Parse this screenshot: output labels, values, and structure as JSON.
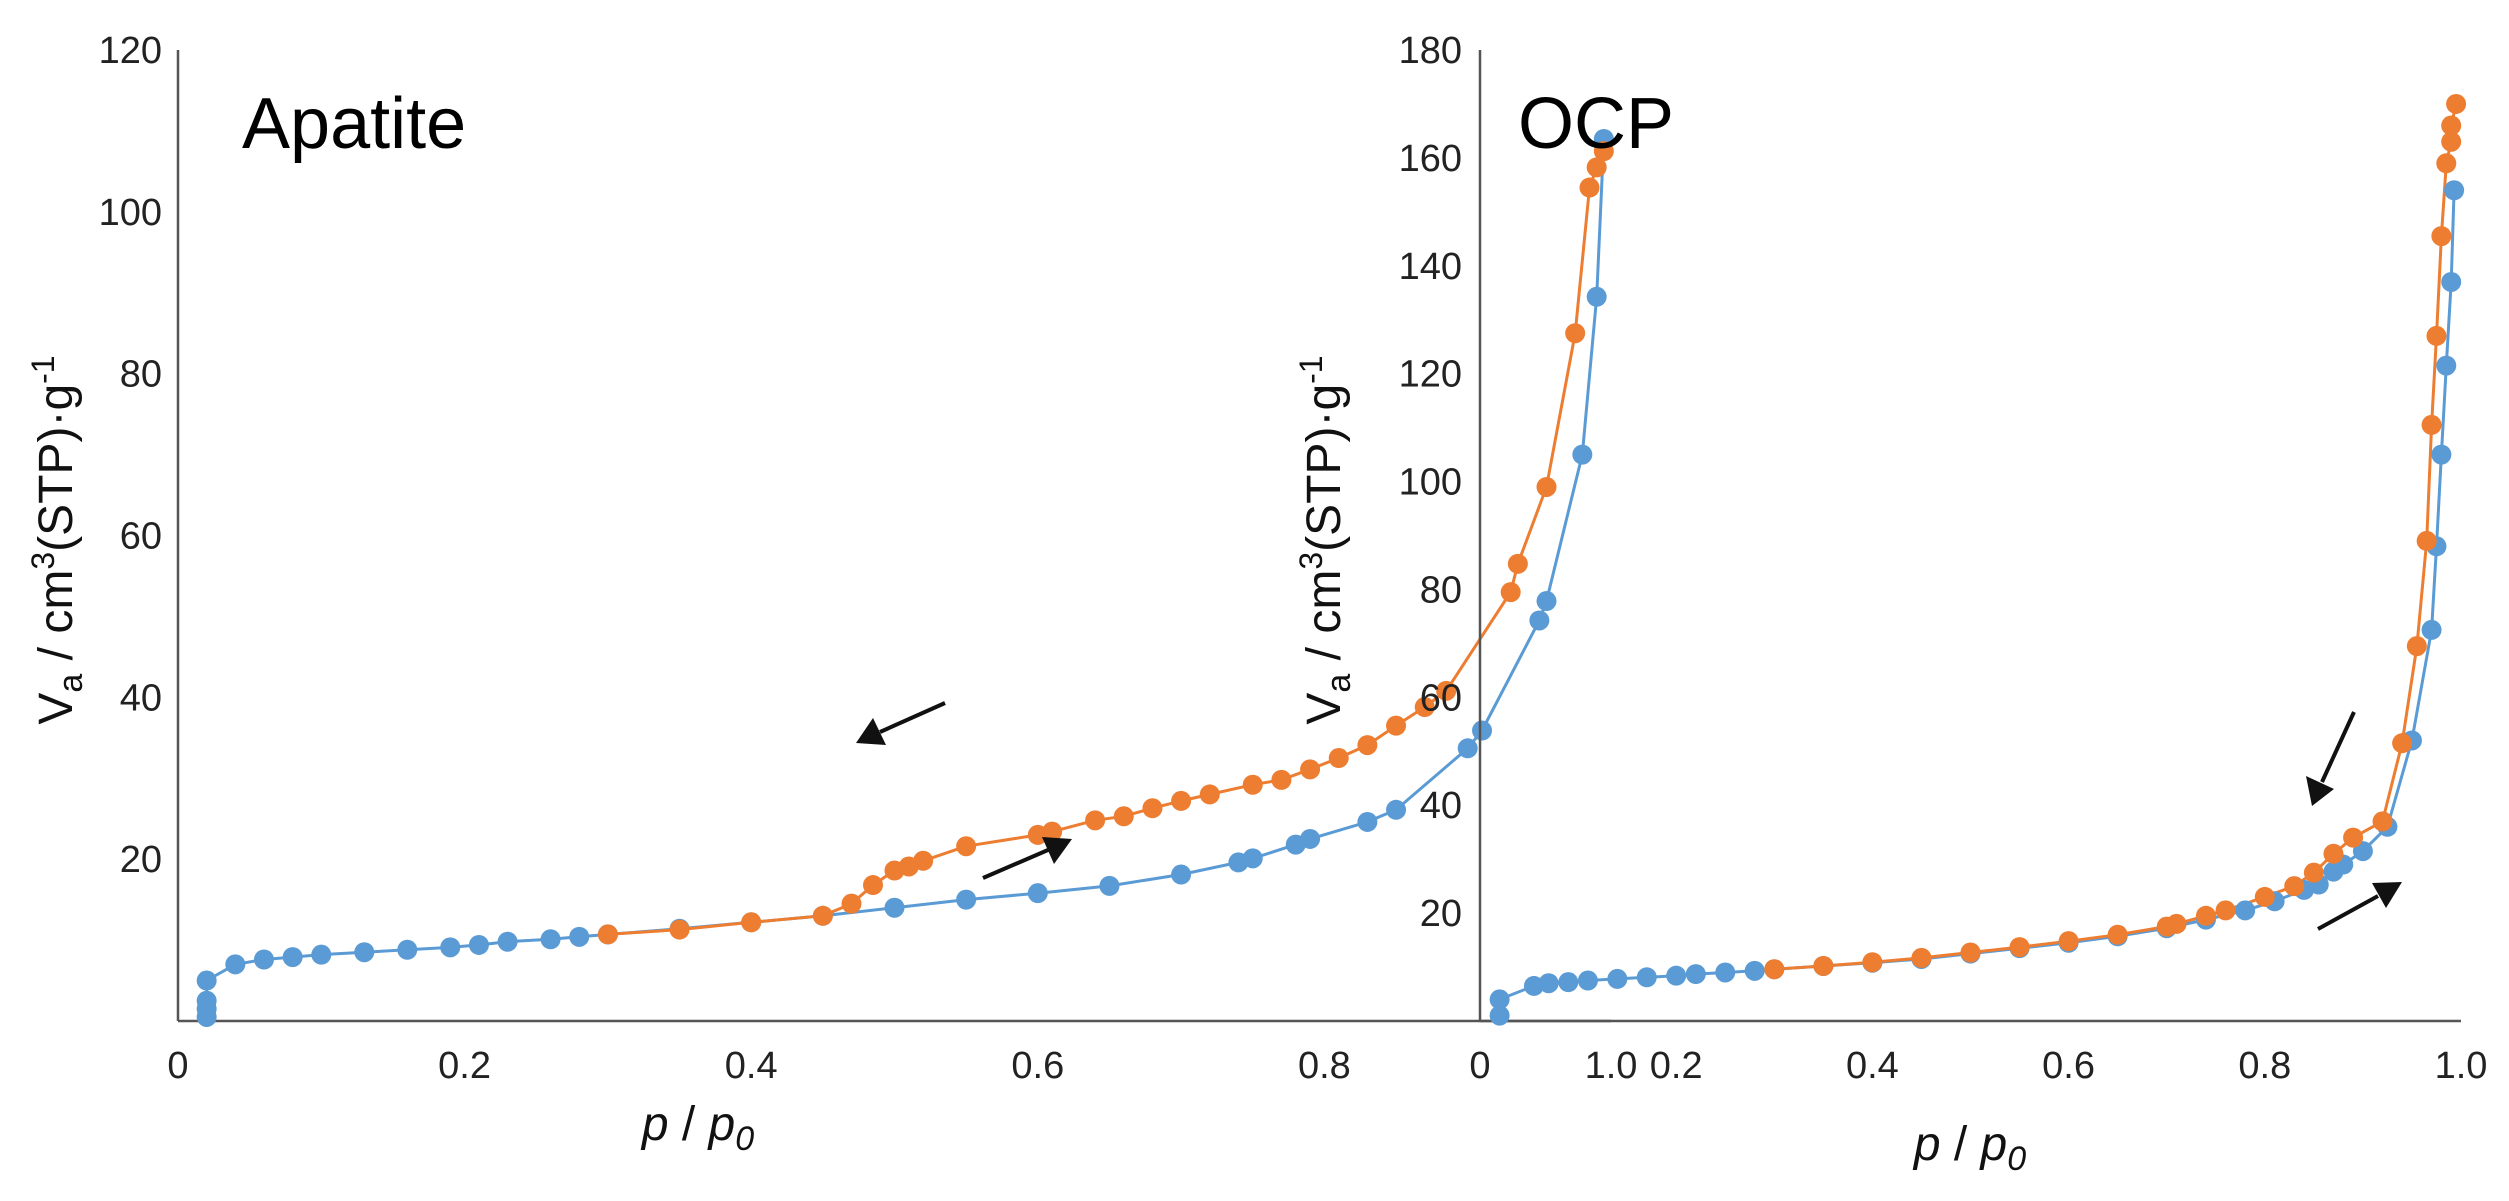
{
  "colors": {
    "adsorption": "#5b9bd5",
    "desorption": "#ed7d31",
    "axis": "#555555",
    "arrow": "#111111"
  },
  "chart_data": [
    {
      "type": "line",
      "title": "Apatite",
      "xlabel": "p / p0",
      "ylabel": "Va / cm3(STP)·g-1",
      "xlim": [
        0,
        1.0
      ],
      "ylim": [
        0,
        120
      ],
      "xticks": [
        0,
        0.2,
        0.4,
        0.6,
        0.8,
        1.0
      ],
      "xtick_labels": [
        "0",
        "0.2",
        "0.4",
        "0.6",
        "0.8",
        "1.0"
      ],
      "yticks": [
        20,
        40,
        60,
        80,
        100,
        120
      ],
      "ytick_labels": [
        "20",
        "40",
        "60",
        "80",
        "100",
        "120"
      ],
      "series": [
        {
          "name": "adsorption",
          "x": [
            0.02,
            0.02,
            0.02,
            0.02,
            0.04,
            0.06,
            0.08,
            0.1,
            0.13,
            0.16,
            0.19,
            0.21,
            0.23,
            0.26,
            0.28,
            0.3,
            0.35,
            0.4,
            0.45,
            0.5,
            0.55,
            0.6,
            0.65,
            0.7,
            0.74,
            0.75,
            0.78,
            0.79,
            0.83,
            0.85,
            0.9,
            0.91,
            0.95,
            0.955,
            0.98,
            0.99,
            0.995
          ],
          "y": [
            0.5,
            1.5,
            2.5,
            5,
            7,
            7.6,
            7.9,
            8.2,
            8.5,
            8.8,
            9.1,
            9.4,
            9.8,
            10.1,
            10.4,
            10.7,
            11.4,
            12.2,
            13,
            14,
            15,
            15.8,
            16.7,
            18.1,
            19.6,
            20.1,
            21.8,
            22.5,
            24.6,
            26.1,
            33.7,
            35.9,
            49.5,
            51.9,
            70,
            89.5,
            109
          ]
        },
        {
          "name": "desorption",
          "x": [
            0.995,
            0.99,
            0.985,
            0.975,
            0.955,
            0.935,
            0.93,
            0.885,
            0.87,
            0.85,
            0.83,
            0.81,
            0.79,
            0.77,
            0.75,
            0.72,
            0.7,
            0.68,
            0.66,
            0.64,
            0.61,
            0.6,
            0.55,
            0.52,
            0.51,
            0.5,
            0.485,
            0.47,
            0.45,
            0.4,
            0.35,
            0.3
          ],
          "y": [
            107.5,
            105.5,
            103,
            85,
            66,
            56.5,
            53,
            40.8,
            38.8,
            36.5,
            34.1,
            32.5,
            31.1,
            29.8,
            29.2,
            28,
            27.2,
            26.3,
            25.3,
            24.8,
            23.4,
            23,
            21.6,
            19.8,
            19.1,
            18.6,
            16.8,
            14.5,
            13,
            12.2,
            11.3,
            10.7
          ]
        }
      ],
      "annotations": [
        "desorption arrow pointing down-left",
        "adsorption arrow pointing up-right"
      ]
    },
    {
      "type": "line",
      "title": "OCP",
      "xlabel": "p / p0",
      "ylabel": "Va / cm3(STP)·g-1",
      "xlim": [
        0,
        1.0
      ],
      "ylim": [
        0,
        180
      ],
      "xticks": [
        0,
        0.2,
        0.4,
        0.6,
        0.8,
        1.0
      ],
      "xtick_labels": [
        "0",
        "0.2",
        "0.4",
        "0.6",
        "0.8",
        "1.0"
      ],
      "yticks": [
        20,
        40,
        60,
        80,
        100,
        120,
        140,
        160,
        180
      ],
      "ytick_labels": [
        "20",
        "40",
        "60",
        "80",
        "100",
        "120",
        "140",
        "160",
        "180"
      ],
      "series": [
        {
          "name": "adsorption",
          "x": [
            0.02,
            0.02,
            0.055,
            0.07,
            0.09,
            0.11,
            0.14,
            0.17,
            0.2,
            0.22,
            0.25,
            0.28,
            0.3,
            0.35,
            0.4,
            0.45,
            0.5,
            0.55,
            0.6,
            0.65,
            0.7,
            0.74,
            0.78,
            0.81,
            0.84,
            0.855,
            0.87,
            0.88,
            0.9,
            0.925,
            0.95,
            0.97,
            0.975,
            0.98,
            0.985,
            0.99,
            0.993
          ],
          "y": [
            1,
            4,
            6.5,
            7,
            7.2,
            7.5,
            7.8,
            8.1,
            8.4,
            8.7,
            9,
            9.3,
            9.6,
            10.2,
            10.8,
            11.5,
            12.5,
            13.5,
            14.5,
            15.7,
            17.2,
            18.8,
            20.5,
            22.2,
            24.3,
            25.3,
            27.7,
            29,
            31.5,
            36,
            52,
            72.5,
            88,
            105,
            121.5,
            137,
            154
          ]
        },
        {
          "name": "desorption",
          "x": [
            0.995,
            0.99,
            0.99,
            0.985,
            0.98,
            0.975,
            0.97,
            0.965,
            0.955,
            0.94,
            0.92,
            0.89,
            0.87,
            0.85,
            0.83,
            0.8,
            0.76,
            0.74,
            0.71,
            0.7,
            0.65,
            0.6,
            0.55,
            0.5,
            0.45,
            0.4,
            0.35,
            0.3
          ],
          "y": [
            170,
            166,
            163,
            159,
            145.5,
            127,
            110.5,
            89,
            69.5,
            51.5,
            37,
            34,
            31,
            27.5,
            25,
            23,
            20.5,
            19.5,
            18,
            17.5,
            16,
            14.8,
            13.7,
            12.7,
            11.7,
            10.9,
            10.2,
            9.6
          ]
        }
      ],
      "annotations": [
        "desorption arrow pointing down-left",
        "adsorption arrow pointing up-right"
      ]
    }
  ]
}
